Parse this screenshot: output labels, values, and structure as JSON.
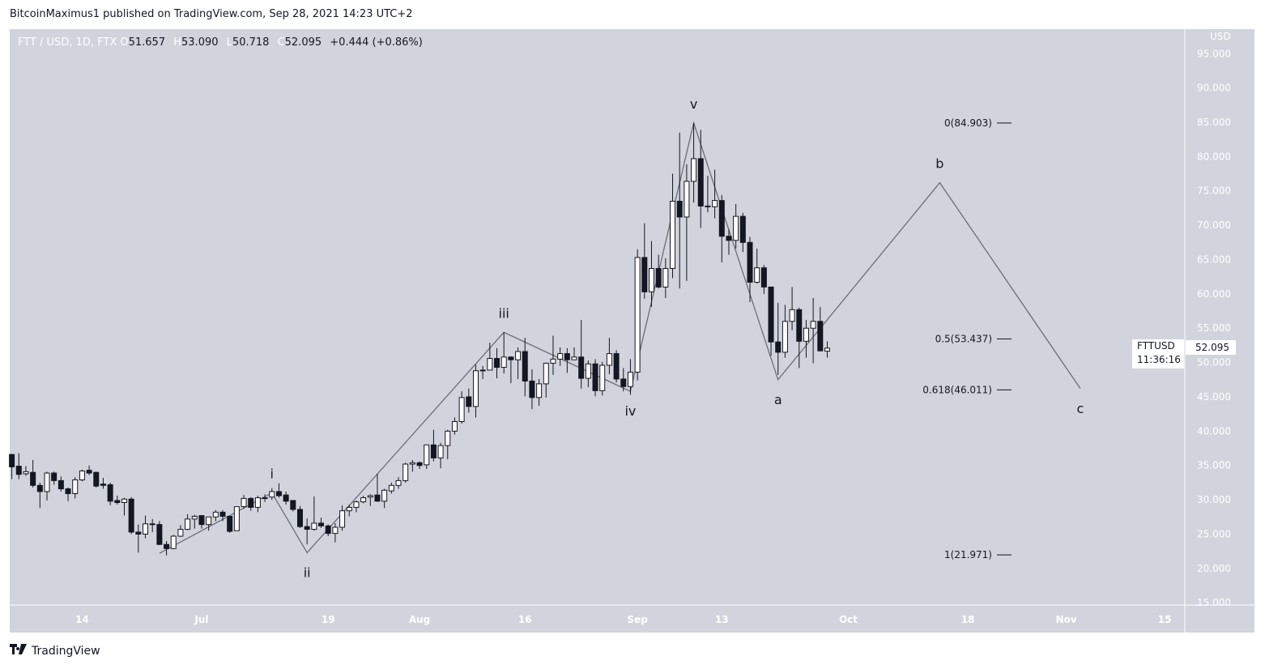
{
  "published": "BitcoinMaximus1 published on TradingView.com, Sep 28, 2021 14:23 UTC+2",
  "legend": {
    "symbol": "FTT / USD, 1D, FTX",
    "o_label": "O",
    "o": "51.657",
    "h_label": "H",
    "h": "53.090",
    "l_label": "L",
    "l": "50.718",
    "c_label": "C",
    "c": "52.095",
    "change": "+0.444 (+0.86%)"
  },
  "price_axis": {
    "currency": "USD",
    "ticks": [
      "15.000",
      "20.000",
      "25.000",
      "30.000",
      "35.000",
      "40.000",
      "45.000",
      "50.000",
      "55.000",
      "60.000",
      "65.000",
      "70.000",
      "75.000",
      "80.000",
      "85.000",
      "90.000",
      "95.000"
    ]
  },
  "current": {
    "symbol": "FTTUSD",
    "price": "52.095",
    "countdown": "11:36:16"
  },
  "footer": {
    "logo": "TV",
    "brand": "TradingView"
  },
  "colors": {
    "background": "#d1d4dc",
    "bull": "#ffffff",
    "bear": "#131722",
    "wick": "#131722",
    "wave_line": "#6b6e76",
    "axis_text": "#ffffff"
  },
  "chart_data": {
    "type": "candlestick",
    "ylim": [
      14.8,
      98.6
    ],
    "xlim": [
      "2021-06-03",
      "2021-11-17"
    ],
    "grid": false,
    "time_ticks": [
      {
        "date": "2021-06-14",
        "label": "14"
      },
      {
        "date": "2021-07-01",
        "label": "Jul"
      },
      {
        "date": "2021-07-19",
        "label": "19"
      },
      {
        "date": "2021-08-01",
        "label": "Aug"
      },
      {
        "date": "2021-08-16",
        "label": "16"
      },
      {
        "date": "2021-09-01",
        "label": "Sep"
      },
      {
        "date": "2021-09-13",
        "label": "13"
      },
      {
        "date": "2021-10-01",
        "label": "Oct"
      },
      {
        "date": "2021-10-18",
        "label": "18"
      },
      {
        "date": "2021-11-01",
        "label": "Nov"
      },
      {
        "date": "2021-11-15",
        "label": "15"
      }
    ],
    "ohlc_columns": [
      "date",
      "open",
      "high",
      "low",
      "close"
    ],
    "ohlc": [
      [
        "2021-06-04",
        36.6,
        36.7,
        33.0,
        34.8
      ],
      [
        "2021-06-05",
        34.9,
        36.8,
        33.0,
        33.7
      ],
      [
        "2021-06-06",
        33.8,
        34.9,
        33.5,
        34.1
      ],
      [
        "2021-06-07",
        34.0,
        35.8,
        31.8,
        32.1
      ],
      [
        "2021-06-08",
        32.1,
        32.5,
        28.8,
        31.2
      ],
      [
        "2021-06-09",
        31.2,
        34.1,
        29.9,
        33.9
      ],
      [
        "2021-06-10",
        33.9,
        34.1,
        32.2,
        32.8
      ],
      [
        "2021-06-11",
        32.8,
        33.4,
        31.2,
        31.6
      ],
      [
        "2021-06-12",
        31.6,
        31.8,
        29.8,
        30.9
      ],
      [
        "2021-06-13",
        30.9,
        33.3,
        30.2,
        32.9
      ],
      [
        "2021-06-14",
        32.9,
        34.4,
        32.7,
        34.2
      ],
      [
        "2021-06-15",
        34.3,
        35.0,
        33.6,
        33.9
      ],
      [
        "2021-06-16",
        34.0,
        34.1,
        31.8,
        32.0
      ],
      [
        "2021-06-17",
        32.3,
        33.2,
        31.6,
        32.1
      ],
      [
        "2021-06-18",
        32.2,
        32.5,
        29.2,
        29.8
      ],
      [
        "2021-06-19",
        29.9,
        30.6,
        29.3,
        29.6
      ],
      [
        "2021-06-20",
        29.6,
        30.3,
        27.7,
        30.1
      ],
      [
        "2021-06-21",
        30.1,
        30.4,
        25.0,
        25.3
      ],
      [
        "2021-06-22",
        25.3,
        26.4,
        22.3,
        25.0
      ],
      [
        "2021-06-23",
        25.0,
        27.7,
        24.4,
        26.5
      ],
      [
        "2021-06-24",
        26.5,
        27.2,
        25.3,
        26.4
      ],
      [
        "2021-06-25",
        26.4,
        26.9,
        23.4,
        23.5
      ],
      [
        "2021-06-26",
        23.5,
        24.0,
        21.9,
        22.9
      ],
      [
        "2021-06-27",
        22.9,
        24.9,
        22.8,
        24.7
      ],
      [
        "2021-06-28",
        24.7,
        26.3,
        24.6,
        25.7
      ],
      [
        "2021-06-29",
        25.7,
        27.9,
        25.6,
        27.2
      ],
      [
        "2021-06-30",
        27.2,
        27.8,
        25.8,
        27.6
      ],
      [
        "2021-07-01",
        27.7,
        27.7,
        25.8,
        26.4
      ],
      [
        "2021-07-02",
        26.4,
        27.5,
        25.5,
        27.5
      ],
      [
        "2021-07-03",
        27.5,
        28.5,
        26.9,
        28.2
      ],
      [
        "2021-07-04",
        28.2,
        28.5,
        26.9,
        27.6
      ],
      [
        "2021-07-05",
        27.6,
        27.6,
        25.2,
        25.4
      ],
      [
        "2021-07-06",
        25.5,
        29.0,
        25.5,
        29.0
      ],
      [
        "2021-07-07",
        29.0,
        30.7,
        28.7,
        30.2
      ],
      [
        "2021-07-08",
        30.2,
        30.4,
        28.4,
        28.9
      ],
      [
        "2021-07-09",
        28.9,
        30.6,
        28.2,
        30.3
      ],
      [
        "2021-07-10",
        30.3,
        30.8,
        29.7,
        30.3
      ],
      [
        "2021-07-11",
        30.4,
        31.7,
        30.0,
        31.2
      ],
      [
        "2021-07-12",
        31.2,
        32.4,
        30.3,
        30.6
      ],
      [
        "2021-07-13",
        30.7,
        31.2,
        29.3,
        29.8
      ],
      [
        "2021-07-14",
        29.9,
        29.9,
        28.3,
        28.6
      ],
      [
        "2021-07-15",
        28.6,
        29.1,
        25.9,
        26.1
      ],
      [
        "2021-07-16",
        26.1,
        27.3,
        23.5,
        25.7
      ],
      [
        "2021-07-17",
        25.7,
        30.5,
        25.5,
        26.6
      ],
      [
        "2021-07-18",
        26.6,
        27.4,
        25.9,
        26.2
      ],
      [
        "2021-07-19",
        26.2,
        26.4,
        24.7,
        25.1
      ],
      [
        "2021-07-20",
        25.1,
        26.6,
        23.8,
        26.0
      ],
      [
        "2021-07-21",
        26.0,
        29.2,
        25.5,
        28.4
      ],
      [
        "2021-07-22",
        28.4,
        29.3,
        27.6,
        28.9
      ],
      [
        "2021-07-23",
        28.9,
        29.9,
        28.2,
        29.7
      ],
      [
        "2021-07-24",
        29.7,
        30.6,
        29.5,
        30.3
      ],
      [
        "2021-07-25",
        30.4,
        30.8,
        29.1,
        30.6
      ],
      [
        "2021-07-26",
        30.7,
        33.8,
        29.7,
        29.8
      ],
      [
        "2021-07-27",
        29.8,
        31.6,
        28.8,
        31.4
      ],
      [
        "2021-07-28",
        31.3,
        32.5,
        30.9,
        32.1
      ],
      [
        "2021-07-29",
        32.1,
        33.3,
        31.6,
        32.8
      ],
      [
        "2021-07-30",
        32.8,
        35.4,
        32.5,
        35.2
      ],
      [
        "2021-07-31",
        35.2,
        35.8,
        34.1,
        35.4
      ],
      [
        "2021-08-01",
        35.4,
        35.6,
        34.5,
        35.0
      ],
      [
        "2021-08-02",
        35.1,
        38.0,
        34.5,
        38.0
      ],
      [
        "2021-08-03",
        38.0,
        40.2,
        35.6,
        36.1
      ],
      [
        "2021-08-04",
        36.1,
        38.3,
        34.6,
        37.9
      ],
      [
        "2021-08-05",
        37.9,
        40.2,
        35.9,
        40.0
      ],
      [
        "2021-08-06",
        40.0,
        42.0,
        39.5,
        41.4
      ],
      [
        "2021-08-07",
        41.4,
        45.8,
        41.1,
        44.9
      ],
      [
        "2021-08-08",
        45.0,
        46.2,
        42.7,
        43.6
      ],
      [
        "2021-08-09",
        43.6,
        49.7,
        42.0,
        48.8
      ],
      [
        "2021-08-10",
        48.9,
        49.5,
        47.6,
        48.8
      ],
      [
        "2021-08-11",
        48.9,
        52.9,
        48.9,
        50.6
      ],
      [
        "2021-08-12",
        50.6,
        52.1,
        47.7,
        49.3
      ],
      [
        "2021-08-13",
        49.3,
        54.4,
        48.4,
        50.8
      ],
      [
        "2021-08-14",
        50.8,
        50.9,
        47.0,
        50.4
      ],
      [
        "2021-08-15",
        50.4,
        52.2,
        47.6,
        51.6
      ],
      [
        "2021-08-16",
        51.6,
        53.6,
        45.1,
        47.3
      ],
      [
        "2021-08-17",
        47.3,
        49.0,
        43.2,
        44.9
      ],
      [
        "2021-08-18",
        44.9,
        47.6,
        43.7,
        46.9
      ],
      [
        "2021-08-19",
        46.9,
        50.0,
        44.9,
        49.9
      ],
      [
        "2021-08-20",
        49.9,
        53.9,
        48.2,
        50.5
      ],
      [
        "2021-08-21",
        50.5,
        52.2,
        49.5,
        51.3
      ],
      [
        "2021-08-22",
        51.3,
        52.1,
        48.5,
        50.4
      ],
      [
        "2021-08-23",
        50.4,
        52.2,
        50.4,
        50.8
      ],
      [
        "2021-08-24",
        50.8,
        56.2,
        46.2,
        47.7
      ],
      [
        "2021-08-25",
        47.7,
        50.3,
        46.4,
        49.8
      ],
      [
        "2021-08-26",
        49.8,
        50.5,
        45.1,
        45.9
      ],
      [
        "2021-08-27",
        45.9,
        50.1,
        45.2,
        49.6
      ],
      [
        "2021-08-28",
        49.6,
        53.6,
        48.3,
        51.3
      ],
      [
        "2021-08-29",
        51.3,
        51.8,
        47.1,
        47.6
      ],
      [
        "2021-08-30",
        47.6,
        49.2,
        45.8,
        46.5
      ],
      [
        "2021-08-31",
        46.5,
        50.5,
        45.3,
        48.6
      ],
      [
        "2021-09-01",
        48.6,
        66.5,
        47.4,
        65.3
      ],
      [
        "2021-09-02",
        65.3,
        70.3,
        59.3,
        60.3
      ],
      [
        "2021-09-03",
        60.3,
        67.7,
        58.1,
        63.7
      ],
      [
        "2021-09-04",
        63.7,
        65.7,
        60.8,
        61.0
      ],
      [
        "2021-09-05",
        61.0,
        65.2,
        59.4,
        63.7
      ],
      [
        "2021-09-06",
        63.7,
        77.5,
        62.3,
        73.5
      ],
      [
        "2021-09-07",
        73.5,
        83.5,
        60.8,
        71.2
      ],
      [
        "2021-09-08",
        71.2,
        78.9,
        61.9,
        76.4
      ],
      [
        "2021-09-09",
        76.4,
        84.9,
        73.3,
        79.7
      ],
      [
        "2021-09-10",
        79.7,
        83.9,
        69.6,
        72.8
      ],
      [
        "2021-09-11",
        72.8,
        77.2,
        71.9,
        72.7
      ],
      [
        "2021-09-12",
        72.7,
        78.1,
        71.0,
        73.6
      ],
      [
        "2021-09-13",
        73.6,
        74.4,
        64.6,
        68.4
      ],
      [
        "2021-09-14",
        68.4,
        69.4,
        65.7,
        67.8
      ],
      [
        "2021-09-15",
        67.8,
        73.1,
        66.6,
        71.3
      ],
      [
        "2021-09-16",
        71.3,
        71.8,
        66.1,
        67.5
      ],
      [
        "2021-09-17",
        67.5,
        68.3,
        58.8,
        61.7
      ],
      [
        "2021-09-18",
        61.7,
        66.6,
        61.5,
        63.8
      ],
      [
        "2021-09-19",
        63.8,
        64.2,
        60.0,
        61.0
      ],
      [
        "2021-09-20",
        61.0,
        61.0,
        51.0,
        53.0
      ],
      [
        "2021-09-21",
        53.0,
        58.7,
        48.2,
        51.5
      ],
      [
        "2021-09-22",
        51.5,
        58.4,
        50.7,
        56.0
      ],
      [
        "2021-09-23",
        56.0,
        61.0,
        54.7,
        57.7
      ],
      [
        "2021-09-24",
        57.7,
        58.0,
        49.2,
        53.1
      ],
      [
        "2021-09-25",
        53.1,
        56.2,
        50.7,
        55.0
      ],
      [
        "2021-09-26",
        55.0,
        59.4,
        49.9,
        56.0
      ],
      [
        "2021-09-27",
        56.0,
        58.1,
        51.7,
        51.7
      ],
      [
        "2021-09-28",
        51.657,
        53.09,
        50.718,
        52.095
      ]
    ],
    "wave_path": [
      {
        "date": "2021-06-25",
        "price": 22.2,
        "label": ""
      },
      {
        "date": "2021-07-11",
        "price": 31.0,
        "label": "i",
        "pos": "above"
      },
      {
        "date": "2021-07-16",
        "price": 22.3,
        "label": "ii",
        "pos": "below"
      },
      {
        "date": "2021-08-13",
        "price": 54.4,
        "label": "iii",
        "pos": "above"
      },
      {
        "date": "2021-08-31",
        "price": 45.8,
        "label": "iv",
        "pos": "below"
      },
      {
        "date": "2021-09-09",
        "price": 84.9,
        "label": "v",
        "pos": "above"
      },
      {
        "date": "2021-09-21",
        "price": 47.5,
        "label": "a",
        "pos": "below"
      },
      {
        "date": "2021-10-14",
        "price": 76.2,
        "label": "b",
        "pos": "above"
      },
      {
        "date": "2021-11-03",
        "price": 46.2,
        "label": "c",
        "pos": "below"
      }
    ],
    "fib_levels": [
      {
        "label": "0(84.903)",
        "price": 84.903
      },
      {
        "label": "0.5(53.437)",
        "price": 53.437
      },
      {
        "label": "0.618(46.011)",
        "price": 46.011
      },
      {
        "label": "1(21.971)",
        "price": 21.971
      }
    ]
  }
}
